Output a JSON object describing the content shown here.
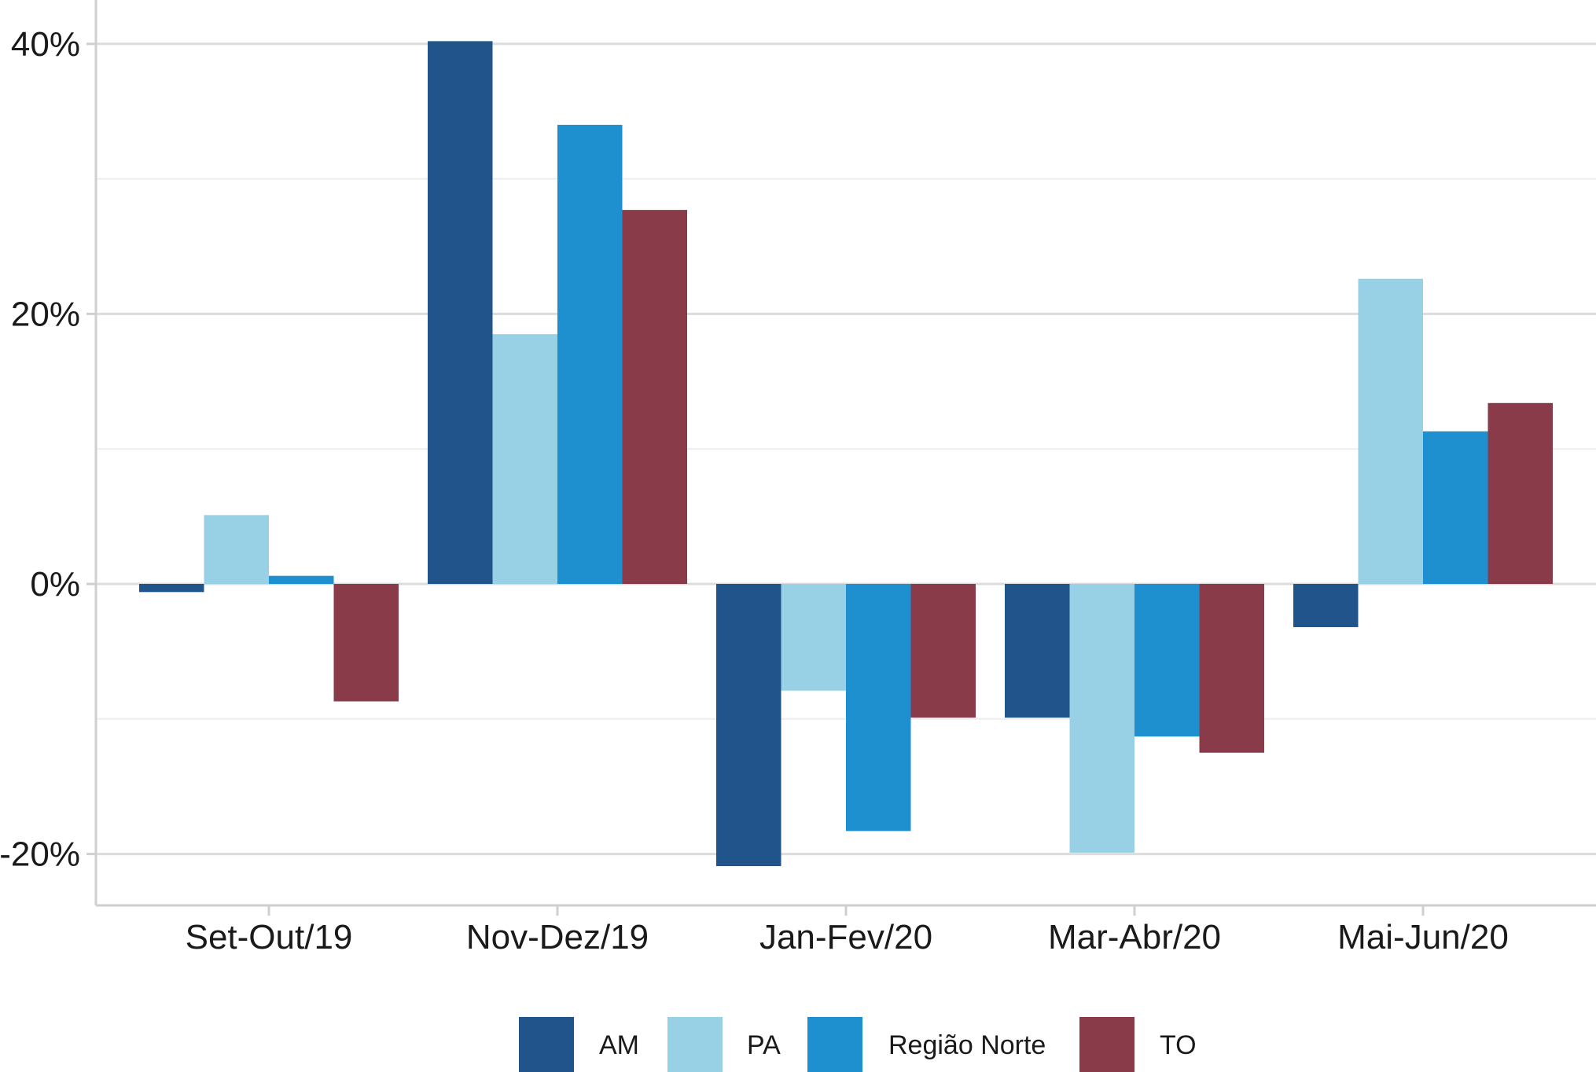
{
  "chart_data": {
    "type": "bar",
    "categories": [
      "Set-Out/19",
      "Nov-Dez/19",
      "Jan-Fev/20",
      "Mar-Abr/20",
      "Mai-Jun/20"
    ],
    "series": [
      {
        "name": "AM",
        "color": "#21548a",
        "values": [
          -0.6,
          40.2,
          -20.9,
          -9.9,
          -3.2
        ]
      },
      {
        "name": "PA",
        "color": "#98d1e6",
        "values": [
          5.1,
          18.5,
          -7.9,
          -19.9,
          22.6
        ]
      },
      {
        "name": "Região Norte",
        "color": "#1f90cf",
        "values": [
          0.6,
          34.0,
          -18.3,
          -11.3,
          11.3
        ]
      },
      {
        "name": "TO",
        "color": "#8a3b49",
        "values": [
          -8.7,
          27.7,
          -9.9,
          -12.5,
          13.4
        ]
      }
    ],
    "yticks": [
      40,
      20,
      0,
      -20
    ],
    "ytick_labels": [
      "40%",
      "20%",
      "0%",
      "-20%"
    ],
    "ylim": [
      -23.5,
      43.5
    ],
    "xlabel": "",
    "ylabel": "",
    "grid": true,
    "legend_position": "bottom"
  }
}
